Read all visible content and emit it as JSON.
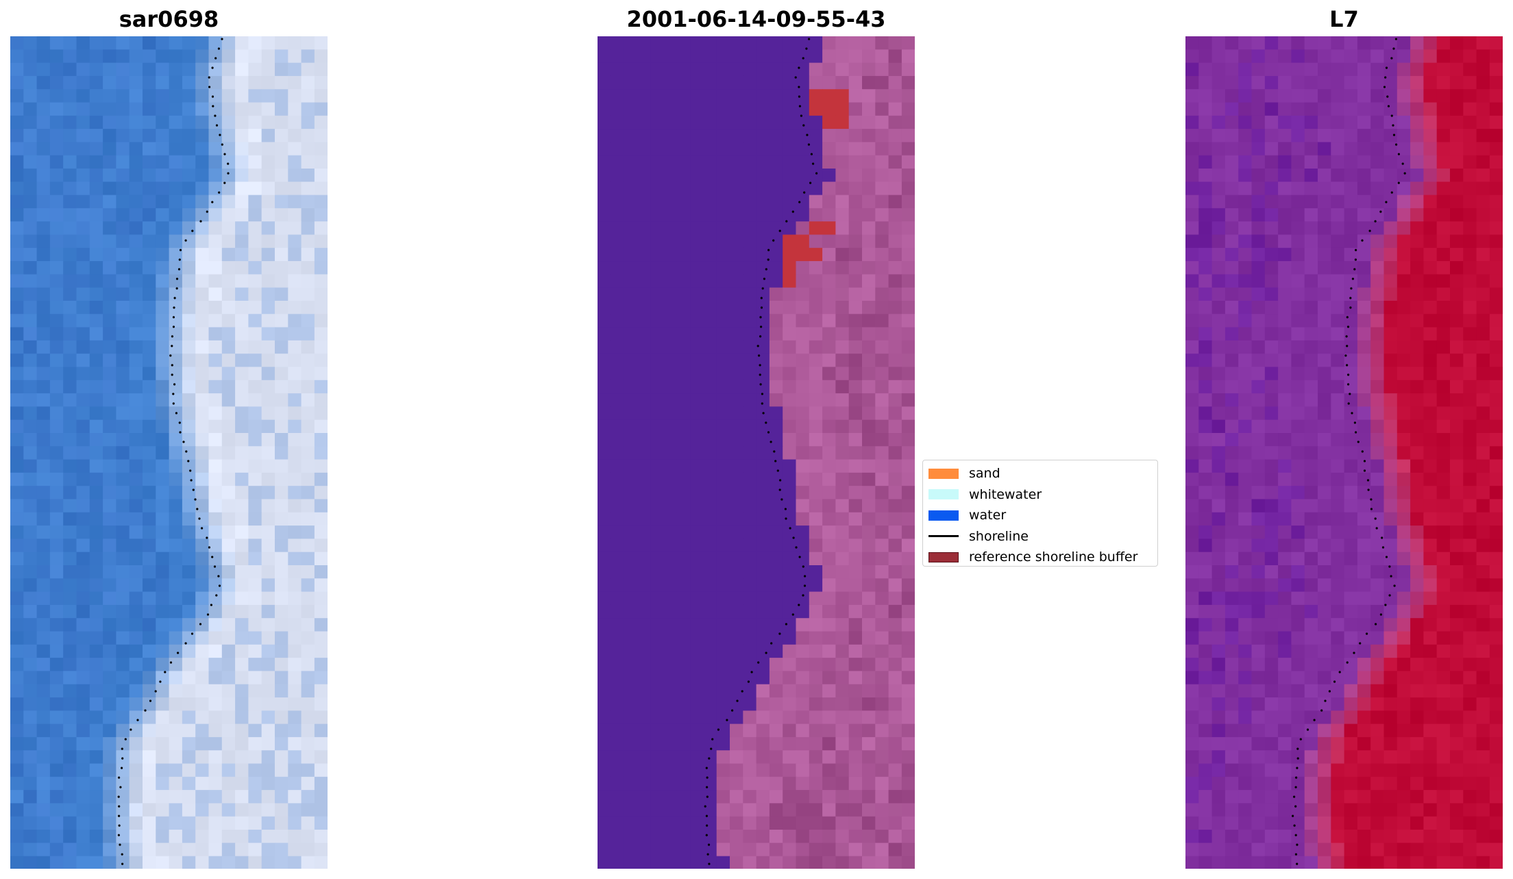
{
  "panels": [
    {
      "title": "sar0698"
    },
    {
      "title": "2001-06-14-09-55-43"
    },
    {
      "title": "L7"
    }
  ],
  "legend": {
    "items": [
      {
        "label": "sand",
        "color": "#ff8c3c",
        "kind": "patch"
      },
      {
        "label": "whitewater",
        "color": "#c8fafa",
        "kind": "patch"
      },
      {
        "label": "water",
        "color": "#0a5af0",
        "kind": "patch"
      },
      {
        "label": "shoreline",
        "color": "#000000",
        "kind": "line"
      },
      {
        "label": "reference shoreline buffer",
        "color": "#9b2d37",
        "kind": "patch"
      }
    ]
  },
  "colors": {
    "rgb_water": "#3f7fcf",
    "rgb_whitewater": "#dde4f6",
    "class_water": "#55239a",
    "class_land": "#b05c9c",
    "class_buffer": "#c4343c",
    "index_water": "#8230a0",
    "index_land": "#c00a37"
  }
}
